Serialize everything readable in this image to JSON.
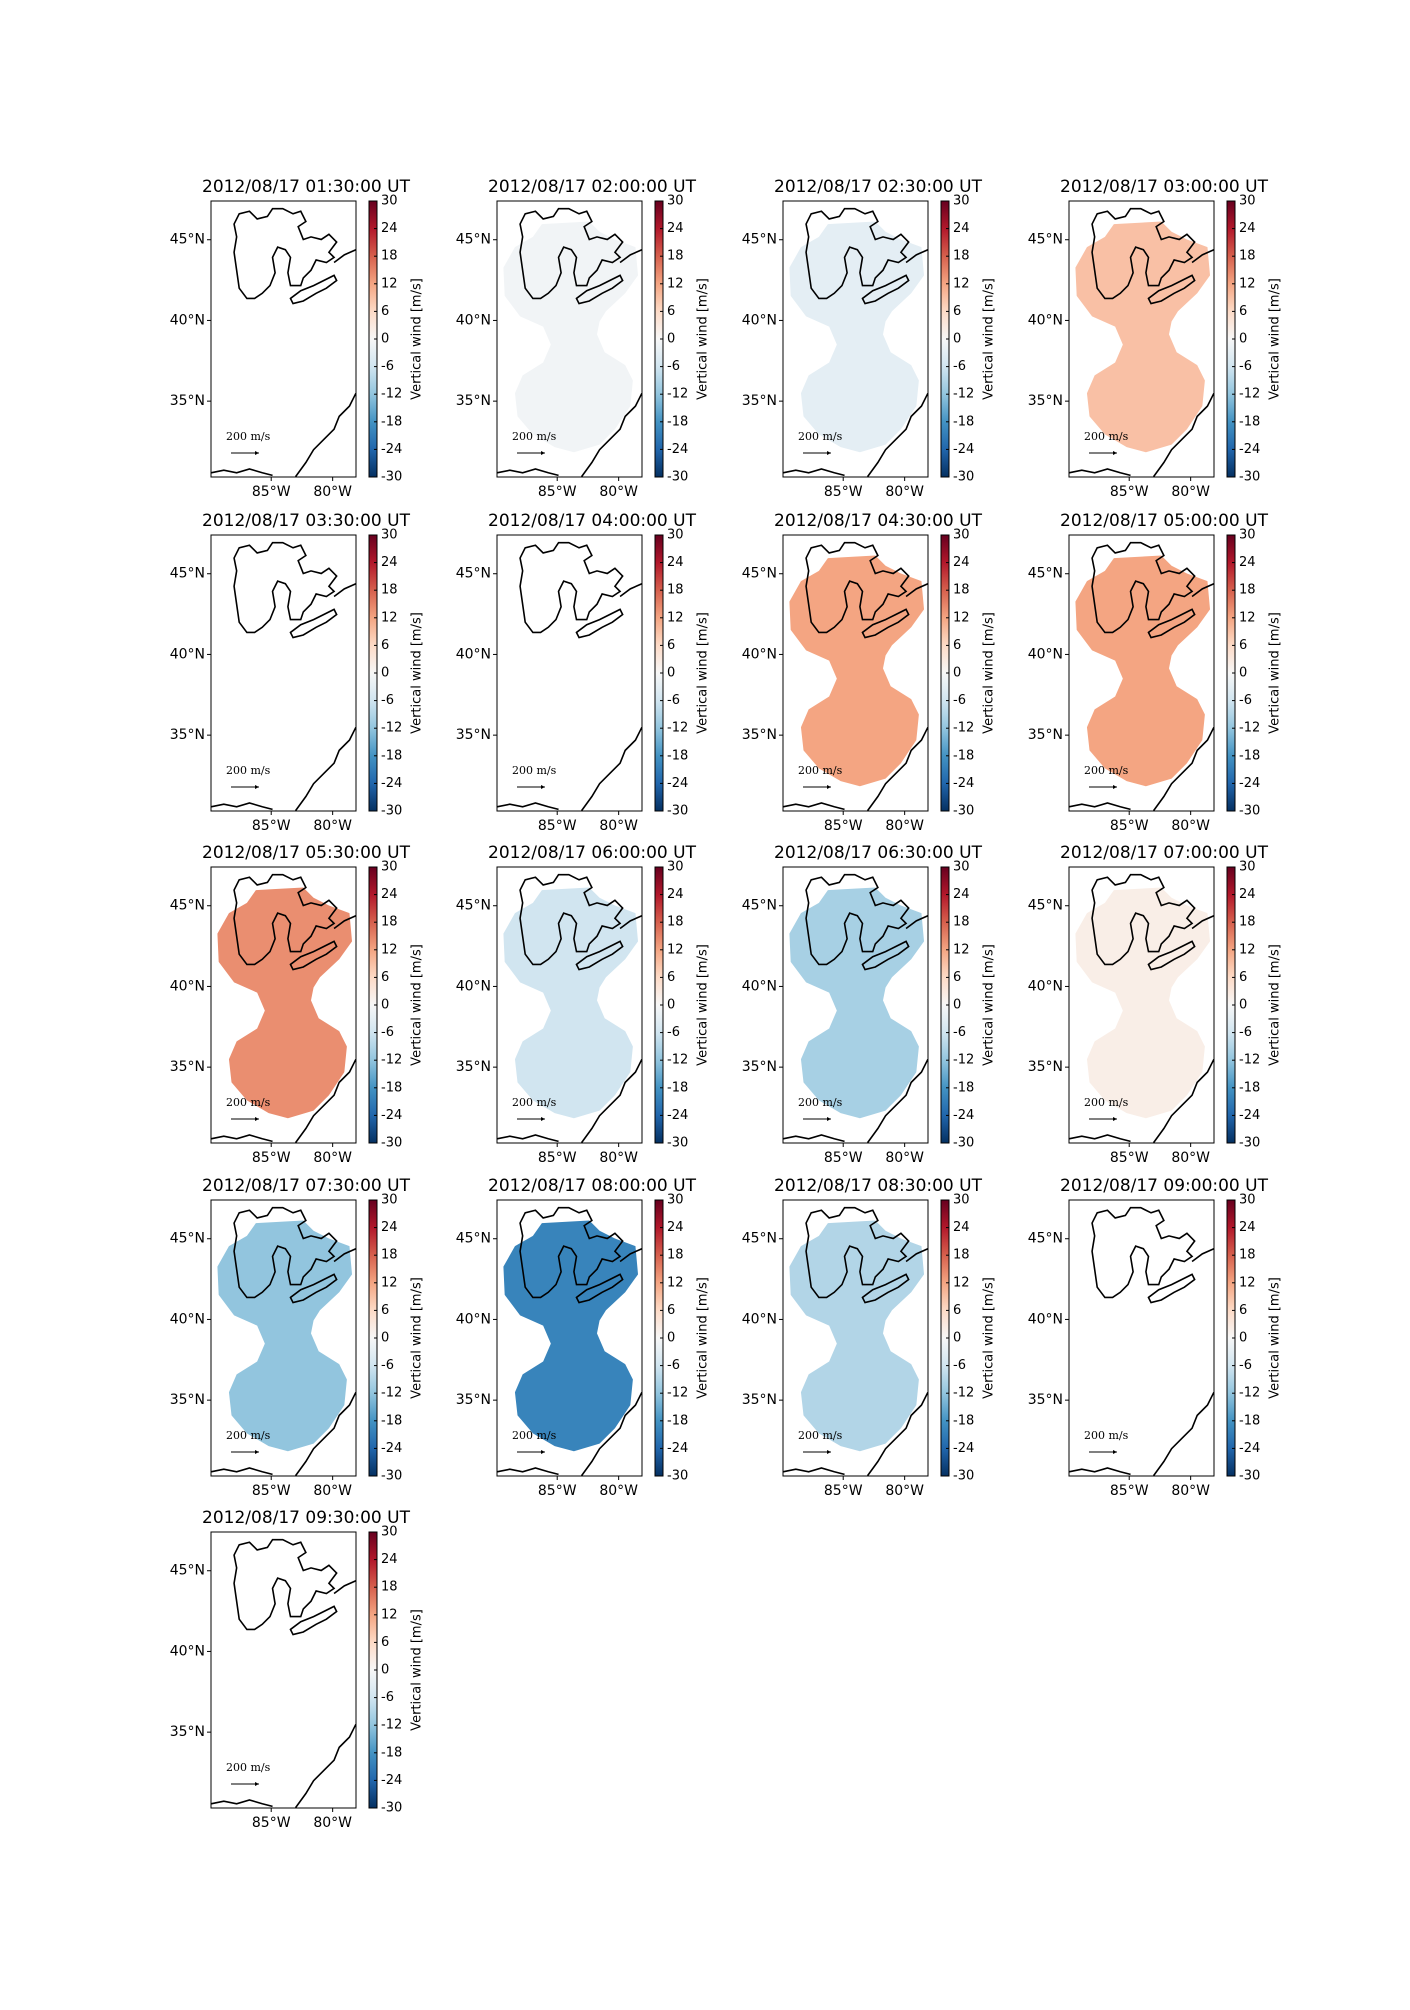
{
  "chart_data": [
    {
      "type": "map",
      "title": "2012/08/17 01:30:00 UT",
      "value": null,
      "colormap": "RdBu_r",
      "clim": [
        -30,
        30
      ],
      "cticks": [
        -30,
        -24,
        -18,
        -12,
        -6,
        0,
        6,
        12,
        18,
        24,
        30
      ],
      "clabel": "Vertical wind [m/s]",
      "xlim": [
        -89.9,
        -78.1
      ],
      "xticks": [
        {
          "value": -85,
          "label": "85°W"
        },
        {
          "value": -80,
          "label": "80°W"
        }
      ],
      "ylim": [
        30.3,
        47.4
      ],
      "yticks": [
        {
          "value": 35,
          "label": "35°N"
        },
        {
          "value": 40,
          "label": "40°N"
        },
        {
          "value": 45,
          "label": "45°N"
        }
      ],
      "scale_label": "200 m/s"
    },
    {
      "type": "map",
      "title": "2012/08/17 02:00:00 UT",
      "value": -1,
      "colormap": "RdBu_r",
      "clim": [
        -30,
        30
      ],
      "cticks": [
        -30,
        -24,
        -18,
        -12,
        -6,
        0,
        6,
        12,
        18,
        24,
        30
      ],
      "clabel": "Vertical wind [m/s]",
      "xlim": [
        -89.9,
        -78.1
      ],
      "xticks": [
        {
          "value": -85,
          "label": "85°W"
        },
        {
          "value": -80,
          "label": "80°W"
        }
      ],
      "ylim": [
        30.3,
        47.4
      ],
      "yticks": [
        {
          "value": 35,
          "label": "35°N"
        },
        {
          "value": 40,
          "label": "40°N"
        },
        {
          "value": 45,
          "label": "45°N"
        }
      ],
      "scale_label": "200 m/s"
    },
    {
      "type": "map",
      "title": "2012/08/17 02:30:00 UT",
      "value": -3,
      "colormap": "RdBu_r",
      "clim": [
        -30,
        30
      ],
      "cticks": [
        -30,
        -24,
        -18,
        -12,
        -6,
        0,
        6,
        12,
        18,
        24,
        30
      ],
      "clabel": "Vertical wind [m/s]",
      "xlim": [
        -89.9,
        -78.1
      ],
      "xticks": [
        {
          "value": -85,
          "label": "85°W"
        },
        {
          "value": -80,
          "label": "80°W"
        }
      ],
      "ylim": [
        30.3,
        47.4
      ],
      "yticks": [
        {
          "value": 35,
          "label": "35°N"
        },
        {
          "value": 40,
          "label": "40°N"
        },
        {
          "value": 45,
          "label": "45°N"
        }
      ],
      "scale_label": "200 m/s"
    },
    {
      "type": "map",
      "title": "2012/08/17 03:00:00 UT",
      "value": 9,
      "colormap": "RdBu_r",
      "clim": [
        -30,
        30
      ],
      "cticks": [
        -30,
        -24,
        -18,
        -12,
        -6,
        0,
        6,
        12,
        18,
        24,
        30
      ],
      "clabel": "Vertical wind [m/s]",
      "xlim": [
        -89.9,
        -78.1
      ],
      "xticks": [
        {
          "value": -85,
          "label": "85°W"
        },
        {
          "value": -80,
          "label": "80°W"
        }
      ],
      "ylim": [
        30.3,
        47.4
      ],
      "yticks": [
        {
          "value": 35,
          "label": "35°N"
        },
        {
          "value": 40,
          "label": "40°N"
        },
        {
          "value": 45,
          "label": "45°N"
        }
      ],
      "scale_label": "200 m/s"
    },
    {
      "type": "map",
      "title": "2012/08/17 03:30:00 UT",
      "value": null,
      "colormap": "RdBu_r",
      "clim": [
        -30,
        30
      ],
      "cticks": [
        -30,
        -24,
        -18,
        -12,
        -6,
        0,
        6,
        12,
        18,
        24,
        30
      ],
      "clabel": "Vertical wind [m/s]",
      "xlim": [
        -89.9,
        -78.1
      ],
      "xticks": [
        {
          "value": -85,
          "label": "85°W"
        },
        {
          "value": -80,
          "label": "80°W"
        }
      ],
      "ylim": [
        30.3,
        47.4
      ],
      "yticks": [
        {
          "value": 35,
          "label": "35°N"
        },
        {
          "value": 40,
          "label": "40°N"
        },
        {
          "value": 45,
          "label": "45°N"
        }
      ],
      "scale_label": "200 m/s"
    },
    {
      "type": "map",
      "title": "2012/08/17 04:00:00 UT",
      "value": null,
      "colormap": "RdBu_r",
      "clim": [
        -30,
        30
      ],
      "cticks": [
        -30,
        -24,
        -18,
        -12,
        -6,
        0,
        6,
        12,
        18,
        24,
        30
      ],
      "clabel": "Vertical wind [m/s]",
      "xlim": [
        -89.9,
        -78.1
      ],
      "xticks": [
        {
          "value": -85,
          "label": "85°W"
        },
        {
          "value": -80,
          "label": "80°W"
        }
      ],
      "ylim": [
        30.3,
        47.4
      ],
      "yticks": [
        {
          "value": 35,
          "label": "35°N"
        },
        {
          "value": 40,
          "label": "40°N"
        },
        {
          "value": 45,
          "label": "45°N"
        }
      ],
      "scale_label": "200 m/s"
    },
    {
      "type": "map",
      "title": "2012/08/17 04:30:00 UT",
      "value": 12,
      "colormap": "RdBu_r",
      "clim": [
        -30,
        30
      ],
      "cticks": [
        -30,
        -24,
        -18,
        -12,
        -6,
        0,
        6,
        12,
        18,
        24,
        30
      ],
      "clabel": "Vertical wind [m/s]",
      "xlim": [
        -89.9,
        -78.1
      ],
      "xticks": [
        {
          "value": -85,
          "label": "85°W"
        },
        {
          "value": -80,
          "label": "80°W"
        }
      ],
      "ylim": [
        30.3,
        47.4
      ],
      "yticks": [
        {
          "value": 35,
          "label": "35°N"
        },
        {
          "value": 40,
          "label": "40°N"
        },
        {
          "value": 45,
          "label": "45°N"
        }
      ],
      "scale_label": "200 m/s"
    },
    {
      "type": "map",
      "title": "2012/08/17 05:00:00 UT",
      "value": 12,
      "colormap": "RdBu_r",
      "clim": [
        -30,
        30
      ],
      "cticks": [
        -30,
        -24,
        -18,
        -12,
        -6,
        0,
        6,
        12,
        18,
        24,
        30
      ],
      "clabel": "Vertical wind [m/s]",
      "xlim": [
        -89.9,
        -78.1
      ],
      "xticks": [
        {
          "value": -85,
          "label": "85°W"
        },
        {
          "value": -80,
          "label": "80°W"
        }
      ],
      "ylim": [
        30.3,
        47.4
      ],
      "yticks": [
        {
          "value": 35,
          "label": "35°N"
        },
        {
          "value": 40,
          "label": "40°N"
        },
        {
          "value": 45,
          "label": "45°N"
        }
      ],
      "scale_label": "200 m/s"
    },
    {
      "type": "map",
      "title": "2012/08/17 05:30:00 UT",
      "value": 14,
      "colormap": "RdBu_r",
      "clim": [
        -30,
        30
      ],
      "cticks": [
        -30,
        -24,
        -18,
        -12,
        -6,
        0,
        6,
        12,
        18,
        24,
        30
      ],
      "clabel": "Vertical wind [m/s]",
      "xlim": [
        -89.9,
        -78.1
      ],
      "xticks": [
        {
          "value": -85,
          "label": "85°W"
        },
        {
          "value": -80,
          "label": "80°W"
        }
      ],
      "ylim": [
        30.3,
        47.4
      ],
      "yticks": [
        {
          "value": 35,
          "label": "35°N"
        },
        {
          "value": 40,
          "label": "40°N"
        },
        {
          "value": 45,
          "label": "45°N"
        }
      ],
      "scale_label": "200 m/s"
    },
    {
      "type": "map",
      "title": "2012/08/17 06:00:00 UT",
      "value": -6,
      "colormap": "RdBu_r",
      "clim": [
        -30,
        30
      ],
      "cticks": [
        -30,
        -24,
        -18,
        -12,
        -6,
        0,
        6,
        12,
        18,
        24,
        30
      ],
      "clabel": "Vertical wind [m/s]",
      "xlim": [
        -89.9,
        -78.1
      ],
      "xticks": [
        {
          "value": -85,
          "label": "85°W"
        },
        {
          "value": -80,
          "label": "80°W"
        }
      ],
      "ylim": [
        30.3,
        47.4
      ],
      "yticks": [
        {
          "value": 35,
          "label": "35°N"
        },
        {
          "value": 40,
          "label": "40°N"
        },
        {
          "value": 45,
          "label": "45°N"
        }
      ],
      "scale_label": "200 m/s"
    },
    {
      "type": "map",
      "title": "2012/08/17 06:30:00 UT",
      "value": -10,
      "colormap": "RdBu_r",
      "clim": [
        -30,
        30
      ],
      "cticks": [
        -30,
        -24,
        -18,
        -12,
        -6,
        0,
        6,
        12,
        18,
        24,
        30
      ],
      "clabel": "Vertical wind [m/s]",
      "xlim": [
        -89.9,
        -78.1
      ],
      "xticks": [
        {
          "value": -85,
          "label": "85°W"
        },
        {
          "value": -80,
          "label": "80°W"
        }
      ],
      "ylim": [
        30.3,
        47.4
      ],
      "yticks": [
        {
          "value": 35,
          "label": "35°N"
        },
        {
          "value": 40,
          "label": "40°N"
        },
        {
          "value": 45,
          "label": "45°N"
        }
      ],
      "scale_label": "200 m/s"
    },
    {
      "type": "map",
      "title": "2012/08/17 07:00:00 UT",
      "value": 2,
      "colormap": "RdBu_r",
      "clim": [
        -30,
        30
      ],
      "cticks": [
        -30,
        -24,
        -18,
        -12,
        -6,
        0,
        6,
        12,
        18,
        24,
        30
      ],
      "clabel": "Vertical wind [m/s]",
      "xlim": [
        -89.9,
        -78.1
      ],
      "xticks": [
        {
          "value": -85,
          "label": "85°W"
        },
        {
          "value": -80,
          "label": "80°W"
        }
      ],
      "ylim": [
        30.3,
        47.4
      ],
      "yticks": [
        {
          "value": 35,
          "label": "35°N"
        },
        {
          "value": 40,
          "label": "40°N"
        },
        {
          "value": 45,
          "label": "45°N"
        }
      ],
      "scale_label": "200 m/s"
    },
    {
      "type": "map",
      "title": "2012/08/17 07:30:00 UT",
      "value": -12,
      "colormap": "RdBu_r",
      "clim": [
        -30,
        30
      ],
      "cticks": [
        -30,
        -24,
        -18,
        -12,
        -6,
        0,
        6,
        12,
        18,
        24,
        30
      ],
      "clabel": "Vertical wind [m/s]",
      "xlim": [
        -89.9,
        -78.1
      ],
      "xticks": [
        {
          "value": -85,
          "label": "85°W"
        },
        {
          "value": -80,
          "label": "80°W"
        }
      ],
      "ylim": [
        30.3,
        47.4
      ],
      "yticks": [
        {
          "value": 35,
          "label": "35°N"
        },
        {
          "value": 40,
          "label": "40°N"
        },
        {
          "value": 45,
          "label": "45°N"
        }
      ],
      "scale_label": "200 m/s"
    },
    {
      "type": "map",
      "title": "2012/08/17 08:00:00 UT",
      "value": -20,
      "colormap": "RdBu_r",
      "clim": [
        -30,
        30
      ],
      "cticks": [
        -30,
        -24,
        -18,
        -12,
        -6,
        0,
        6,
        12,
        18,
        24,
        30
      ],
      "clabel": "Vertical wind [m/s]",
      "xlim": [
        -89.9,
        -78.1
      ],
      "xticks": [
        {
          "value": -85,
          "label": "85°W"
        },
        {
          "value": -80,
          "label": "80°W"
        }
      ],
      "ylim": [
        30.3,
        47.4
      ],
      "yticks": [
        {
          "value": 35,
          "label": "35°N"
        },
        {
          "value": 40,
          "label": "40°N"
        },
        {
          "value": 45,
          "label": "45°N"
        }
      ],
      "scale_label": "200 m/s"
    },
    {
      "type": "map",
      "title": "2012/08/17 08:30:00 UT",
      "value": -9,
      "colormap": "RdBu_r",
      "clim": [
        -30,
        30
      ],
      "cticks": [
        -30,
        -24,
        -18,
        -12,
        -6,
        0,
        6,
        12,
        18,
        24,
        30
      ],
      "clabel": "Vertical wind [m/s]",
      "xlim": [
        -89.9,
        -78.1
      ],
      "xticks": [
        {
          "value": -85,
          "label": "85°W"
        },
        {
          "value": -80,
          "label": "80°W"
        }
      ],
      "ylim": [
        30.3,
        47.4
      ],
      "yticks": [
        {
          "value": 35,
          "label": "35°N"
        },
        {
          "value": 40,
          "label": "40°N"
        },
        {
          "value": 45,
          "label": "45°N"
        }
      ],
      "scale_label": "200 m/s"
    },
    {
      "type": "map",
      "title": "2012/08/17 09:00:00 UT",
      "value": null,
      "colormap": "RdBu_r",
      "clim": [
        -30,
        30
      ],
      "cticks": [
        -30,
        -24,
        -18,
        -12,
        -6,
        0,
        6,
        12,
        18,
        24,
        30
      ],
      "clabel": "Vertical wind [m/s]",
      "xlim": [
        -89.9,
        -78.1
      ],
      "xticks": [
        {
          "value": -85,
          "label": "85°W"
        },
        {
          "value": -80,
          "label": "80°W"
        }
      ],
      "ylim": [
        30.3,
        47.4
      ],
      "yticks": [
        {
          "value": 35,
          "label": "35°N"
        },
        {
          "value": 40,
          "label": "40°N"
        },
        {
          "value": 45,
          "label": "45°N"
        }
      ],
      "scale_label": "200 m/s"
    },
    {
      "type": "map",
      "title": "2012/08/17 09:30:00 UT",
      "value": null,
      "colormap": "RdBu_r",
      "clim": [
        -30,
        30
      ],
      "cticks": [
        -30,
        -24,
        -18,
        -12,
        -6,
        0,
        6,
        12,
        18,
        24,
        30
      ],
      "clabel": "Vertical wind [m/s]",
      "xlim": [
        -89.9,
        -78.1
      ],
      "xticks": [
        {
          "value": -85,
          "label": "85°W"
        },
        {
          "value": -80,
          "label": "80°W"
        }
      ],
      "ylim": [
        30.3,
        47.4
      ],
      "yticks": [
        {
          "value": 35,
          "label": "35°N"
        },
        {
          "value": 40,
          "label": "40°N"
        },
        {
          "value": 45,
          "label": "45°N"
        }
      ],
      "scale_label": "200 m/s"
    }
  ]
}
